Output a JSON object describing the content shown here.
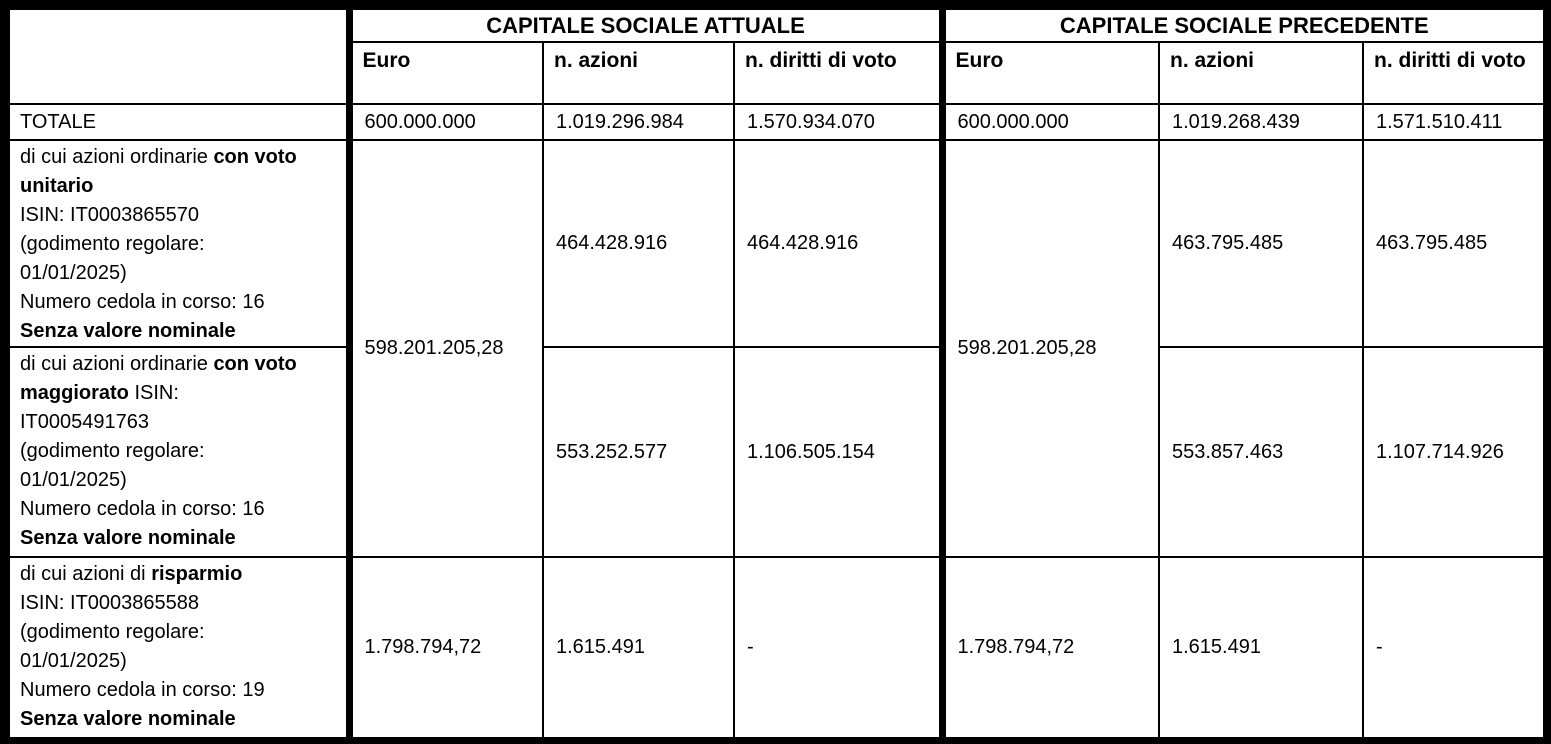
{
  "page": {
    "background": "#ffffff",
    "border_color": "#000000",
    "text_color": "#000000"
  },
  "table": {
    "group_headers": {
      "attuale": "CAPITALE SOCIALE ATTUALE",
      "precedente": "CAPITALE SOCIALE PRECEDENTE"
    },
    "column_headers": {
      "euro": "Euro",
      "azioni": "n. azioni",
      "diritti": "n. diritti di voto"
    },
    "totale": {
      "label": "TOTALE",
      "attuale": {
        "euro": "600.000.000",
        "azioni": "1.019.296.984",
        "diritti": "1.570.934.070"
      },
      "precedente": {
        "euro": "600.000.000",
        "azioni": "1.019.268.439",
        "diritti": "1.571.510.411"
      }
    },
    "ordinarie_euro_merged": {
      "attuale": "598.201.205,28",
      "precedente": "598.201.205,28"
    },
    "rows": [
      {
        "id": "ordinarie-voto-unitario",
        "label_lines": [
          [
            [
              "di cui azioni ordinarie ",
              0
            ],
            [
              "con voto",
              1
            ]
          ],
          [
            [
              "unitario",
              1
            ]
          ],
          [
            [
              "ISIN: IT0003865570",
              0
            ]
          ],
          [
            [
              "(godimento regolare:",
              0
            ]
          ],
          [
            [
              "01/01/2025)",
              0
            ]
          ],
          [
            [
              "Numero cedola in corso: 16",
              0
            ]
          ],
          [
            [
              "Senza valore nominale",
              1
            ]
          ]
        ],
        "attuale": {
          "azioni": "464.428.916",
          "diritti": "464.428.916"
        },
        "precedente": {
          "azioni": "463.795.485",
          "diritti": "463.795.485"
        }
      },
      {
        "id": "ordinarie-voto-maggiorato",
        "label_lines": [
          [
            [
              "di cui azioni ordinarie ",
              0
            ],
            [
              "con voto",
              1
            ]
          ],
          [
            [
              "maggiorato",
              1
            ],
            [
              " ISIN:",
              0
            ]
          ],
          [
            [
              "IT0005491763",
              0
            ]
          ],
          [
            [
              "(godimento regolare:",
              0
            ]
          ],
          [
            [
              "01/01/2025)",
              0
            ]
          ],
          [
            [
              "Numero cedola in corso: 16",
              0
            ]
          ],
          [
            [
              "Senza valore nominale",
              1
            ]
          ]
        ],
        "attuale": {
          "azioni": "553.252.577",
          "diritti": "1.106.505.154"
        },
        "precedente": {
          "azioni": "553.857.463",
          "diritti": "1.107.714.926"
        }
      },
      {
        "id": "risparmio",
        "label_lines": [
          [
            [
              "di cui azioni di ",
              0
            ],
            [
              "risparmio",
              1
            ]
          ],
          [
            [
              "ISIN: IT0003865588",
              0
            ]
          ],
          [
            [
              "(godimento regolare:",
              0
            ]
          ],
          [
            [
              "01/01/2025)",
              0
            ]
          ],
          [
            [
              "Numero cedola in corso: 19",
              0
            ]
          ],
          [
            [
              "Senza valore nominale",
              1
            ]
          ]
        ],
        "attuale": {
          "euro": "1.798.794,72",
          "azioni": "1.615.491",
          "diritti": "-"
        },
        "precedente": {
          "euro": "1.798.794,72",
          "azioni": "1.615.491",
          "diritti": "-"
        }
      }
    ]
  }
}
